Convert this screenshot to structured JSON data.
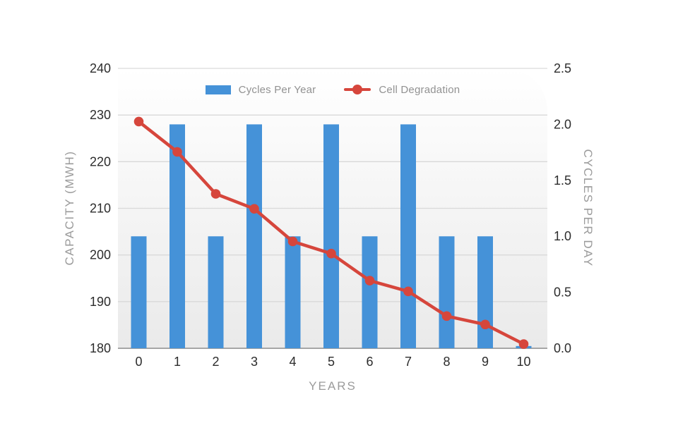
{
  "page": {
    "background_color": "#ffffff",
    "plot_background_top": "#ffffff",
    "plot_background_bottom": "#eaeaea",
    "gridline_color": "#d9d9d9",
    "axis_line_color": "#a6a6a6",
    "tick_label_color": "#2c2c2c",
    "muted_label_color": "#9b9b9b"
  },
  "chart_data": {
    "type": "combo",
    "categories": [
      "0",
      "1",
      "2",
      "3",
      "4",
      "5",
      "6",
      "7",
      "8",
      "9",
      "10"
    ],
    "xlabel": "YEARS",
    "left_axis": {
      "label": "CAPACITY (MWH)",
      "min": 180,
      "max": 240,
      "ticks": [
        "240",
        "230",
        "220",
        "210",
        "200",
        "190",
        "180"
      ]
    },
    "right_axis": {
      "label": "CYCLES PER DAY",
      "min": 0,
      "max": 2.5,
      "ticks": [
        "2.5",
        "2.0",
        "1.5",
        "1.0",
        "0.5",
        "0.0"
      ]
    },
    "grid": "horizontal",
    "legend_position": "top-center",
    "series": [
      {
        "name": "Cycles Per Year",
        "type": "bar",
        "axis": "right",
        "color": "#4592D8",
        "values": [
          1.0,
          2.0,
          1.0,
          2.0,
          1.0,
          2.0,
          1.0,
          2.0,
          1.0,
          1.0,
          0.02
        ]
      },
      {
        "name": "Cell Degradation",
        "type": "line",
        "axis": "left",
        "color": "#D6463C",
        "values": [
          228.6,
          222.1,
          213.1,
          209.9,
          202.9,
          200.3,
          194.5,
          192.2,
          186.9,
          185.1,
          180.9
        ]
      }
    ]
  }
}
